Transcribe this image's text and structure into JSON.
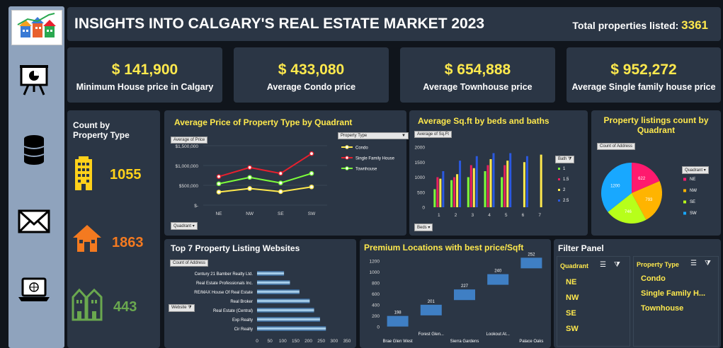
{
  "header": {
    "title": "INSIGHTS INTO CALGARY'S REAL ESTATE MARKET 2023",
    "total_label": "Total properties listed:",
    "total_value": "3361"
  },
  "nav": {
    "icons": [
      "presentation-icon",
      "database-icon",
      "mail-icon",
      "laptop-icon"
    ]
  },
  "kpis": [
    {
      "value": "$ 141,900",
      "label": "Minimum House price in Calgary"
    },
    {
      "value": "$ 433,080",
      "label": "Average Condo price"
    },
    {
      "value": "$ 654,888",
      "label": "Average Townhouse price"
    },
    {
      "value": "$ 952,272",
      "label": "Average Single family house price"
    }
  ],
  "count_panel": {
    "title": "Count by Property Type",
    "items": [
      {
        "icon": "apartment-building-icon",
        "value": "1055",
        "color": "#ffd11a"
      },
      {
        "icon": "house-icon",
        "value": "1863",
        "color": "#f47a20"
      },
      {
        "icon": "townhouse-icon",
        "value": "443",
        "color": "#6aa84f"
      }
    ]
  },
  "quadrant_chart": {
    "title": "Average Price of Property Type by Quadrant",
    "value_chip": "Average of Price",
    "legend_chip": "Property Type",
    "axis_chip": "Quadrant",
    "y_ticks": [
      "$1,500,000",
      "$1,000,000",
      "$500,000",
      "$-"
    ]
  },
  "sqft_chart": {
    "title": "Average Sq.ft by beds and baths",
    "value_chip": "Average of Sq.Ft",
    "legend_chip": "Bath",
    "axis_chip": "Beds",
    "legend": [
      "1",
      "1.5",
      "2",
      "2.5"
    ]
  },
  "pie_chart": {
    "title": "Property listings count by Quadrant",
    "value_chip": "Count of Address",
    "legend_chip": "Quadrant"
  },
  "websites_chart": {
    "title": "Top 7 Property Listing Websites",
    "value_chip": "Count of Address",
    "axis_chip": "Website"
  },
  "premium_chart": {
    "title": "Premium Locations with best price/Sqft",
    "axis_labels_top": [
      "Forest Glen...",
      "Lookout At..."
    ],
    "axis_labels_bottom": [
      "Brae Glen West",
      "Sierra Gardens",
      "Palace Oaks"
    ]
  },
  "filter": {
    "title": "Filter Panel",
    "quadrant_header": "Quadrant",
    "quadrants": [
      "NE",
      "NW",
      "SE",
      "SW"
    ],
    "type_header": "Property Type",
    "types": [
      "Condo",
      "Single Family H...",
      "Townhouse"
    ]
  },
  "chart_data": [
    {
      "type": "line",
      "title": "Average Price of Property Type by Quadrant",
      "categories": [
        "NE",
        "NW",
        "SE",
        "SW"
      ],
      "ylim": [
        0,
        1500000
      ],
      "series": [
        {
          "name": "Condo",
          "color": "#ffe94d",
          "values": [
            330000,
            420000,
            340000,
            460000
          ]
        },
        {
          "name": "Single Family House",
          "color": "#e8202e",
          "values": [
            720000,
            950000,
            800000,
            1300000
          ]
        },
        {
          "name": "Townhouse",
          "color": "#7dff3a",
          "values": [
            540000,
            700000,
            560000,
            800000
          ]
        }
      ]
    },
    {
      "type": "bar",
      "title": "Average Sq.ft by beds and baths",
      "categories": [
        "1",
        "2",
        "3",
        "4",
        "5",
        "6",
        "7"
      ],
      "ylim": [
        0,
        2000
      ],
      "series": [
        {
          "name": "1",
          "color": "#7dff3a",
          "values": [
            600,
            900,
            1000,
            1200,
            1000,
            null,
            null
          ]
        },
        {
          "name": "1.5",
          "color": "#e8205e",
          "values": [
            1000,
            1000,
            1400,
            1400,
            1400,
            null,
            null
          ]
        },
        {
          "name": "2",
          "color": "#ffe94d",
          "values": [
            950,
            1100,
            1300,
            1600,
            1550,
            1500,
            1750
          ]
        },
        {
          "name": "2.5",
          "color": "#2b59e0",
          "values": [
            1200,
            1550,
            1700,
            1800,
            1800,
            1700,
            null
          ]
        }
      ]
    },
    {
      "type": "pie",
      "title": "Property listings count by Quadrant",
      "categories": [
        "NE",
        "NW",
        "SE",
        "SW"
      ],
      "colors": [
        "#ff1a6e",
        "#ffb400",
        "#b7ff1a",
        "#18a8ff"
      ],
      "values": [
        622,
        793,
        746,
        1200
      ]
    },
    {
      "type": "bar",
      "orientation": "horizontal",
      "title": "Top 7 Property Listing Websites",
      "categories": [
        "Century 21 Bamber Realty Ltd.",
        "Real Estate Professionals Inc.",
        "RE/MAX House Of Real Estate",
        "Real Broker",
        "Real Estate (Central)",
        "Exp Realty",
        "Cir Realty"
      ],
      "values": [
        105,
        128,
        165,
        205,
        222,
        245,
        268
      ],
      "xlim": [
        0,
        350
      ],
      "x_ticks": [
        0,
        50,
        100,
        150,
        200,
        250,
        300,
        350
      ]
    },
    {
      "type": "bar",
      "title": "Premium Locations with best price/Sqft",
      "categories": [
        "Brae Glen West",
        "Forest Glen...",
        "Sierra Gardens",
        "Lookout At...",
        "Palace Oaks"
      ],
      "values": [
        198,
        201,
        227,
        240,
        252
      ],
      "ylim": [
        0,
        1200
      ],
      "y_ticks": [
        0,
        200,
        400,
        600,
        800,
        1000,
        1200
      ]
    }
  ]
}
